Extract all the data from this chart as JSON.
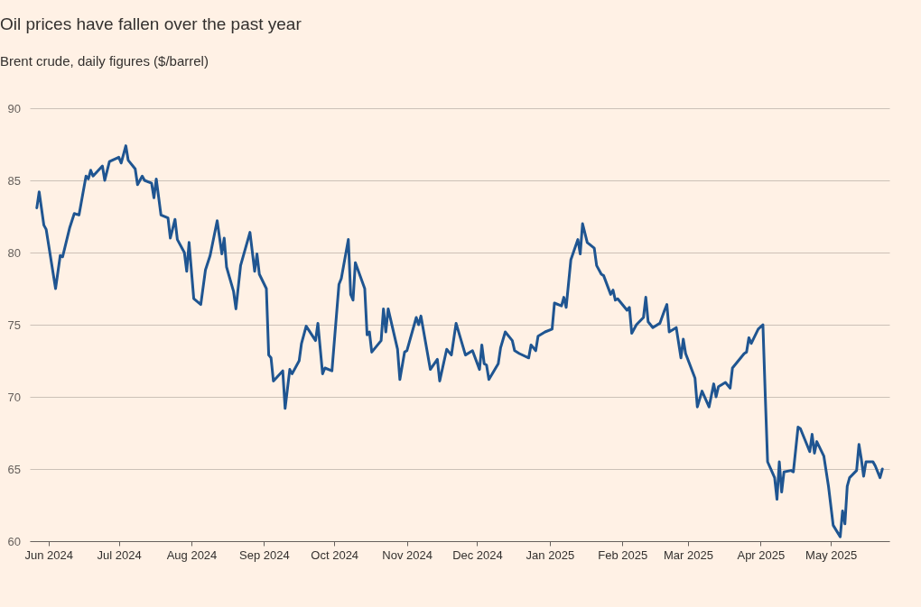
{
  "chart_data": {
    "type": "line",
    "title": "Oil prices have fallen over the past year",
    "subtitle": "Brent crude, daily figures ($/barrel)",
    "x": [
      "2024-05-27",
      "2024-05-28",
      "2024-05-30",
      "2024-05-31",
      "2024-06-04",
      "2024-06-06",
      "2024-06-07",
      "2024-06-10",
      "2024-06-12",
      "2024-06-14",
      "2024-06-17",
      "2024-06-18",
      "2024-06-19",
      "2024-06-20",
      "2024-06-24",
      "2024-06-25",
      "2024-06-27",
      "2024-07-01",
      "2024-07-02",
      "2024-07-04",
      "2024-07-05",
      "2024-07-08",
      "2024-07-09",
      "2024-07-11",
      "2024-07-12",
      "2024-07-15",
      "2024-07-16",
      "2024-07-17",
      "2024-07-19",
      "2024-07-22",
      "2024-07-23",
      "2024-07-25",
      "2024-07-26",
      "2024-07-29",
      "2024-07-30",
      "2024-07-31",
      "2024-08-02",
      "2024-08-05",
      "2024-08-07",
      "2024-08-09",
      "2024-08-12",
      "2024-08-14",
      "2024-08-15",
      "2024-08-16",
      "2024-08-19",
      "2024-08-20",
      "2024-08-22",
      "2024-08-26",
      "2024-08-28",
      "2024-08-29",
      "2024-08-30",
      "2024-09-02",
      "2024-09-03",
      "2024-09-04",
      "2024-09-05",
      "2024-09-09",
      "2024-09-10",
      "2024-09-12",
      "2024-09-13",
      "2024-09-16",
      "2024-09-17",
      "2024-09-19",
      "2024-09-23",
      "2024-09-24",
      "2024-09-26",
      "2024-09-27",
      "2024-09-30",
      "2024-10-01",
      "2024-10-03",
      "2024-10-04",
      "2024-10-07",
      "2024-10-08",
      "2024-10-09",
      "2024-10-10",
      "2024-10-14",
      "2024-10-15",
      "2024-10-16",
      "2024-10-17",
      "2024-10-21",
      "2024-10-22",
      "2024-10-23",
      "2024-10-24",
      "2024-10-28",
      "2024-10-29",
      "2024-10-31",
      "2024-11-01",
      "2024-11-05",
      "2024-11-06",
      "2024-11-07",
      "2024-11-11",
      "2024-11-14",
      "2024-11-15",
      "2024-11-18",
      "2024-11-20",
      "2024-11-22",
      "2024-11-26",
      "2024-11-29",
      "2024-12-02",
      "2024-12-03",
      "2024-12-04",
      "2024-12-05",
      "2024-12-06",
      "2024-12-10",
      "2024-12-11",
      "2024-12-13",
      "2024-12-16",
      "2024-12-17",
      "2024-12-19",
      "2024-12-23",
      "2024-12-24",
      "2024-12-26",
      "2024-12-27",
      "2024-12-30",
      "2025-01-02",
      "2025-01-03",
      "2025-01-06",
      "2025-01-07",
      "2025-01-08",
      "2025-01-10",
      "2025-01-13",
      "2025-01-14",
      "2025-01-15",
      "2025-01-17",
      "2025-01-20",
      "2025-01-21",
      "2025-01-23",
      "2025-01-24",
      "2025-01-27",
      "2025-01-28",
      "2025-01-29",
      "2025-01-30",
      "2025-02-03",
      "2025-02-04",
      "2025-02-05",
      "2025-02-07",
      "2025-02-10",
      "2025-02-11",
      "2025-02-12",
      "2025-02-14",
      "2025-02-17",
      "2025-02-19",
      "2025-02-20",
      "2025-02-21",
      "2025-02-24",
      "2025-02-26",
      "2025-02-27",
      "2025-02-28",
      "2025-03-04",
      "2025-03-05",
      "2025-03-07",
      "2025-03-10",
      "2025-03-12",
      "2025-03-13",
      "2025-03-14",
      "2025-03-17",
      "2025-03-19",
      "2025-03-20",
      "2025-03-25",
      "2025-03-26",
      "2025-03-27",
      "2025-03-28",
      "2025-03-31",
      "2025-04-02",
      "2025-04-03",
      "2025-04-04",
      "2025-04-07",
      "2025-04-08",
      "2025-04-09",
      "2025-04-10",
      "2025-04-11",
      "2025-04-14",
      "2025-04-15",
      "2025-04-17",
      "2025-04-18",
      "2025-04-22",
      "2025-04-23",
      "2025-04-24",
      "2025-04-25",
      "2025-04-28",
      "2025-04-30",
      "2025-05-02",
      "2025-05-05",
      "2025-05-06",
      "2025-05-07",
      "2025-05-08",
      "2025-05-09",
      "2025-05-12",
      "2025-05-13",
      "2025-05-14",
      "2025-05-15",
      "2025-05-16",
      "2025-05-19",
      "2025-05-20",
      "2025-05-22",
      "2025-05-23"
    ],
    "series": [
      {
        "color": "#1f5591",
        "values": [
          83.1,
          84.2,
          81.9,
          81.6,
          77.5,
          79.8,
          79.7,
          81.7,
          82.7,
          82.6,
          85.3,
          85.1,
          85.7,
          85.3,
          86.0,
          85.0,
          86.3,
          86.6,
          86.2,
          87.4,
          86.4,
          85.8,
          84.7,
          85.3,
          85.0,
          84.8,
          83.8,
          85.1,
          82.6,
          82.4,
          81.0,
          82.3,
          80.9,
          80.0,
          78.7,
          80.7,
          76.8,
          76.4,
          78.8,
          79.8,
          82.2,
          79.9,
          81.0,
          79.0,
          77.3,
          76.1,
          79.1,
          81.4,
          78.7,
          79.9,
          78.5,
          77.5,
          72.9,
          72.7,
          71.1,
          71.8,
          69.2,
          71.9,
          71.6,
          72.5,
          73.7,
          74.9,
          73.9,
          75.1,
          71.6,
          72.0,
          71.8,
          73.8,
          77.8,
          78.2,
          80.9,
          77.1,
          76.7,
          79.3,
          77.5,
          74.3,
          74.5,
          73.1,
          73.9,
          76.1,
          74.5,
          76.1,
          73.3,
          71.2,
          73.1,
          73.2,
          75.5,
          75.0,
          75.6,
          71.9,
          72.6,
          71.1,
          73.3,
          72.9,
          75.1,
          72.9,
          73.2,
          71.9,
          73.6,
          72.3,
          72.2,
          71.2,
          72.3,
          73.4,
          74.5,
          73.9,
          73.2,
          73.0,
          72.7,
          73.6,
          73.2,
          74.2,
          74.5,
          74.7,
          76.5,
          76.3,
          76.9,
          76.2,
          79.5,
          80.9,
          79.9,
          82.0,
          80.7,
          80.3,
          79.1,
          78.5,
          78.4,
          77.1,
          77.4,
          76.7,
          76.8,
          76.0,
          76.2,
          74.4,
          75.0,
          75.5,
          76.9,
          75.2,
          74.8,
          75.1,
          76.0,
          76.4,
          74.5,
          74.8,
          72.7,
          74.0,
          73.0,
          71.3,
          69.3,
          70.4,
          69.3,
          70.9,
          70.0,
          70.7,
          71.0,
          70.6,
          72.0,
          73.0,
          73.1,
          74.1,
          73.7,
          74.7,
          75.0,
          70.1,
          65.5,
          64.4,
          62.9,
          65.5,
          63.4,
          64.8,
          64.9,
          64.8,
          67.9,
          67.8,
          66.2,
          67.4,
          66.1,
          66.9,
          65.9,
          63.8,
          61.1,
          60.3,
          62.1,
          61.2,
          63.8,
          64.4,
          64.9,
          66.7,
          65.7,
          64.5,
          65.5,
          65.5,
          65.2,
          64.4,
          65.0
        ]
      }
    ],
    "xlim": [
      "2024-05-24",
      "2025-05-26"
    ],
    "xticks": [
      {
        "value": "2024-06-01",
        "label": "Jun 2024"
      },
      {
        "value": "2024-07-01",
        "label": "Jul 2024"
      },
      {
        "value": "2024-08-01",
        "label": "Aug 2024"
      },
      {
        "value": "2024-09-01",
        "label": "Sep 2024"
      },
      {
        "value": "2024-10-01",
        "label": "Oct 2024"
      },
      {
        "value": "2024-11-01",
        "label": "Nov 2024"
      },
      {
        "value": "2024-12-01",
        "label": "Dec 2024"
      },
      {
        "value": "2025-01-01",
        "label": "Jan 2025"
      },
      {
        "value": "2025-02-01",
        "label": "Feb 2025"
      },
      {
        "value": "2025-03-01",
        "label": "Mar 2025"
      },
      {
        "value": "2025-04-01",
        "label": "Apr 2025"
      },
      {
        "value": "2025-05-01",
        "label": "May 2025"
      }
    ],
    "ylim": [
      60,
      90
    ],
    "yticks": [
      60,
      65,
      70,
      75,
      80,
      85,
      90
    ],
    "grid": "y",
    "line_style": "solid"
  }
}
